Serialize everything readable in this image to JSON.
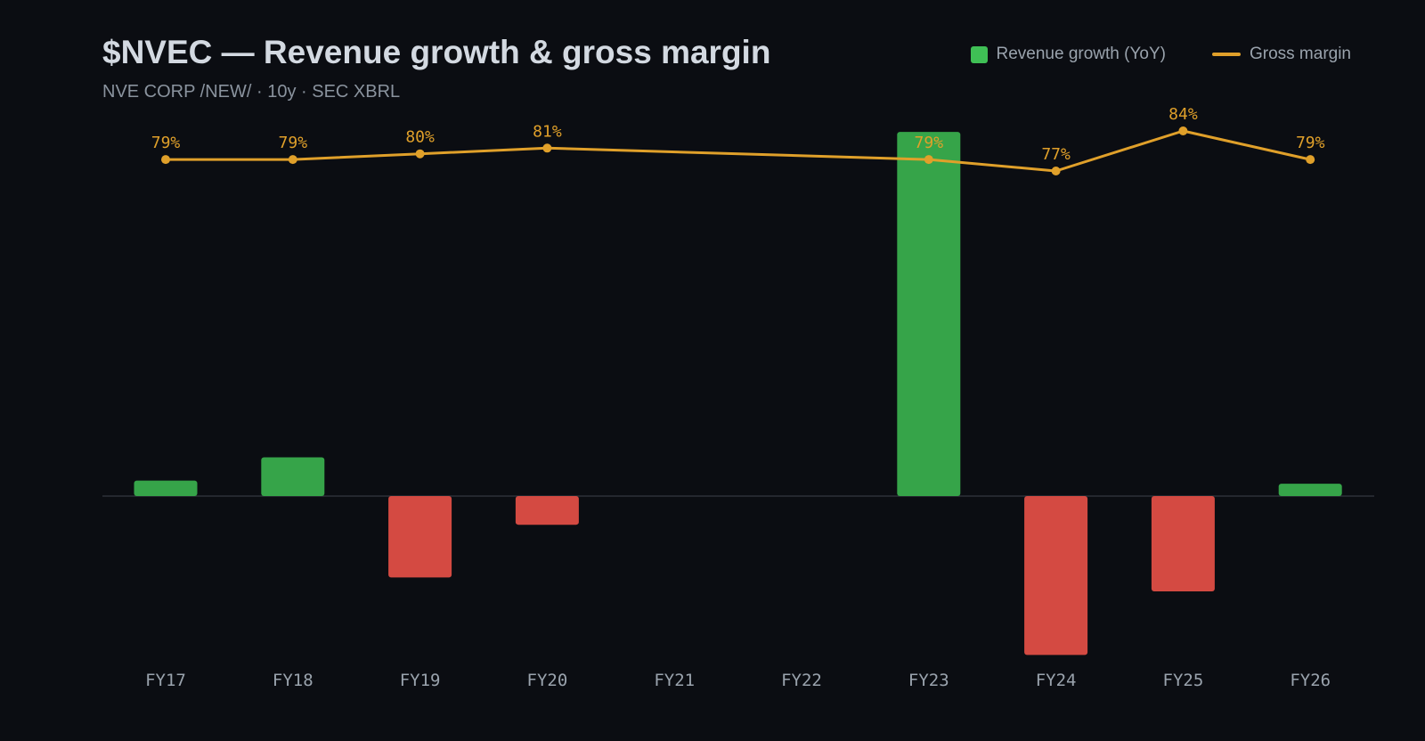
{
  "header": {
    "title": "$NVEC — Revenue growth & gross margin",
    "subtitle": "NVE CORP /NEW/ · 10y · SEC XBRL"
  },
  "colors": {
    "background": "#0b0d12",
    "positive": "#36a449",
    "negative": "#d44a42",
    "margin_line": "#e0a02a",
    "legend_growth": "#3fbf55",
    "baseline": "#2c3038",
    "tick_text": "#9aa3ad"
  },
  "chart_data": {
    "type": "bar",
    "categories": [
      "FY17",
      "FY18",
      "FY19",
      "FY20",
      "FY21",
      "FY22",
      "FY23",
      "FY24",
      "FY25",
      "FY26"
    ],
    "series": [
      {
        "name": "Revenue growth (YoY)",
        "type": "bar",
        "values": [
          2.0,
          5.0,
          -10.5,
          -3.7,
          null,
          null,
          47.0,
          -20.5,
          -12.3,
          1.6
        ]
      },
      {
        "name": "Gross margin",
        "type": "line",
        "values": [
          79,
          79,
          80,
          81,
          null,
          null,
          79,
          77,
          84,
          79
        ],
        "labels": [
          "79%",
          "79%",
          "80%",
          "81%",
          null,
          null,
          "79%",
          "77%",
          "84%",
          "79%"
        ]
      }
    ],
    "legend_position": "top-right",
    "grid": false
  }
}
